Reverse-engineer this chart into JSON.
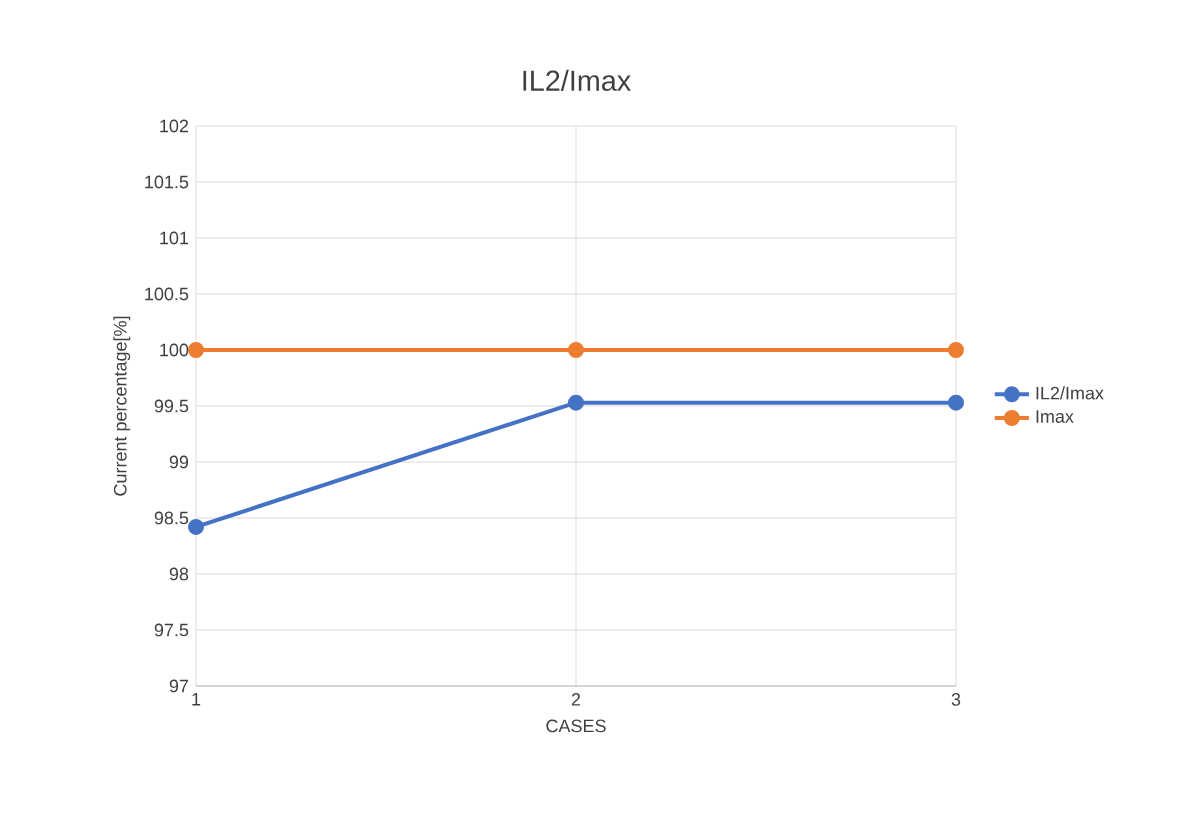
{
  "chart_data": {
    "type": "line",
    "title": "IL2/Imax",
    "xlabel": "CASES",
    "ylabel": "Current percentage[%]",
    "x": [
      1,
      2,
      3
    ],
    "series": [
      {
        "name": "IL2/Imax",
        "color": "#4472c4",
        "values": [
          98.42,
          99.53,
          99.53
        ]
      },
      {
        "name": "Imax",
        "color": "#ed7d31",
        "values": [
          100,
          100,
          100
        ]
      }
    ],
    "xlim": [
      1,
      3
    ],
    "xticks": [
      1,
      2,
      3
    ],
    "ylim": [
      97,
      102
    ],
    "yticks": [
      97,
      97.5,
      98,
      98.5,
      99,
      99.5,
      100,
      100.5,
      101,
      101.5,
      102
    ],
    "grid": true,
    "legend": "right",
    "marker": "circle",
    "line_style": "solid"
  }
}
